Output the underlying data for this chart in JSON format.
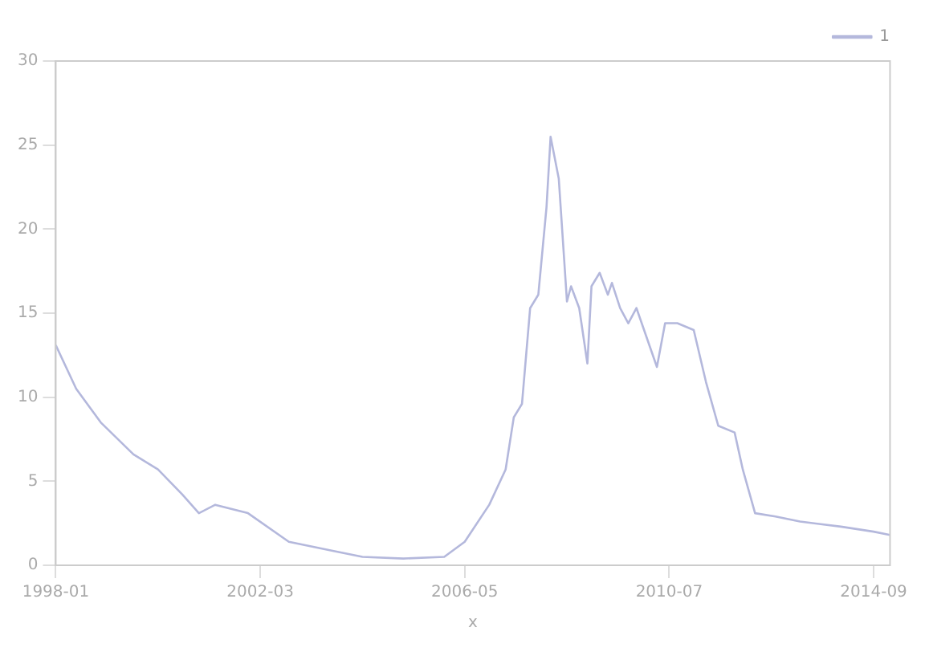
{
  "chart_data": {
    "type": "line",
    "xlabel": "x",
    "x": [
      "1998-01",
      "1998-06",
      "1998-12",
      "1999-08",
      "2000-02",
      "2000-08",
      "2000-12",
      "2001-04",
      "2001-12",
      "2002-10",
      "2003-08",
      "2004-04",
      "2005-02",
      "2005-12",
      "2006-05",
      "2006-11",
      "2007-03",
      "2007-05",
      "2007-07",
      "2007-09",
      "2007-11",
      "2008-01",
      "2008-02",
      "2008-04",
      "2008-06",
      "2008-07",
      "2008-09",
      "2008-11",
      "2008-12",
      "2009-02",
      "2009-04",
      "2009-05",
      "2009-07",
      "2009-09",
      "2009-11",
      "2010-04",
      "2010-06",
      "2010-09",
      "2011-01",
      "2011-04",
      "2011-07",
      "2011-11",
      "2012-01",
      "2012-04",
      "2012-09",
      "2013-03",
      "2014-01",
      "2014-09",
      "2015-01"
    ],
    "series": [
      {
        "name": "1",
        "color": "#b4b8dc",
        "values": [
          13.1,
          10.5,
          8.5,
          6.6,
          5.7,
          4.2,
          3.1,
          3.6,
          3.1,
          1.4,
          0.9,
          0.5,
          0.4,
          0.5,
          1.4,
          3.6,
          5.7,
          8.8,
          9.6,
          15.3,
          16.1,
          21.3,
          25.5,
          23,
          15.7,
          16.6,
          15.3,
          12,
          16.6,
          17.4,
          16.1,
          16.8,
          15.3,
          14.4,
          15.3,
          11.8,
          14.4,
          14.4,
          14,
          10.9,
          8.3,
          7.9,
          5.7,
          3.1,
          2.9,
          2.6,
          2.3,
          2.0,
          1.8
        ]
      }
    ],
    "xlim": [
      "1998-01",
      "2015-01"
    ],
    "xticks": [
      "1998-01",
      "2002-03",
      "2006-05",
      "2010-07",
      "2014-09"
    ],
    "ylim": [
      0,
      30
    ],
    "yticks": [
      0,
      5,
      10,
      15,
      20,
      25,
      30
    ],
    "legend": "top right",
    "grid": false,
    "marker": "none",
    "line_style": "solid"
  }
}
